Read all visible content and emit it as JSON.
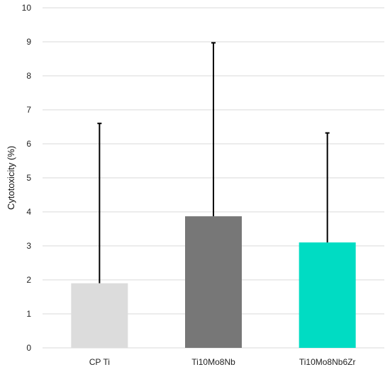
{
  "chart_data": {
    "type": "bar",
    "title": "",
    "xlabel": "",
    "ylabel": "Cytotoxicity (%)",
    "ylim": [
      0,
      10
    ],
    "yticks": [
      0,
      1,
      2,
      3,
      4,
      5,
      6,
      7,
      8,
      9,
      10
    ],
    "grid": true,
    "categories": [
      "CP Ti",
      "Ti10Mo8Nb",
      "Ti10Mo8Nb6Zr"
    ],
    "values": [
      1.9,
      3.87,
      3.1
    ],
    "error_upper": [
      6.6,
      8.97,
      6.32
    ],
    "colors": [
      "#dcdcdc",
      "#777777",
      "#00dcc3"
    ]
  }
}
